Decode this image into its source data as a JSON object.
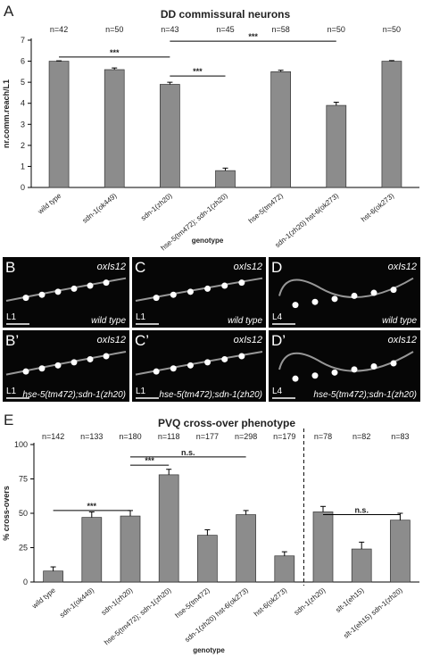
{
  "chart_data": [
    {
      "type": "bar",
      "panel_label": "A",
      "title": "DD commissural neurons",
      "ylabel": "nr.comm.reach/L1",
      "xlabel": "genotype",
      "categories": [
        "wild type",
        "sdn-1(ok449)",
        "sdn-1(zh20)",
        "hse-5(tm472); sdn-1(zh20)",
        "hse-5(tm472)",
        "sdn-1(zh20) hst-6(ok273)",
        "hst-6(ok273)"
      ],
      "values": [
        6.0,
        5.6,
        4.9,
        0.8,
        5.5,
        3.9,
        6.0
      ],
      "errors": [
        0.02,
        0.08,
        0.1,
        0.12,
        0.07,
        0.15,
        0.03
      ],
      "n_labels": [
        "n=42",
        "n=50",
        "n=43",
        "n=45",
        "n=58",
        "n=50",
        "n=50"
      ],
      "color": "#8c8c8c",
      "ylim": [
        0,
        7
      ],
      "yticks": [
        0,
        1,
        2,
        3,
        4,
        5,
        6,
        7
      ],
      "annotations": [
        {
          "from": "wild type",
          "to": "sdn-1(zh20)",
          "y": 6.2,
          "label": "***"
        },
        {
          "from": "sdn-1(zh20)",
          "to": "hse-5(tm472); sdn-1(zh20)",
          "y": 5.3,
          "label": "***"
        },
        {
          "from": "sdn-1(zh20)",
          "to": "sdn-1(zh20) hst-6(ok273)",
          "y": 6.95,
          "label": "***"
        }
      ]
    },
    {
      "type": "bar",
      "panel_label": "E",
      "title": "PVQ cross-over phenotype",
      "ylabel": "% cross-overs",
      "xlabel": "genotype",
      "categories": [
        "wild type",
        "sdn-1(ok449)",
        "sdn-1(zh20)",
        "hse-5(tm472); sdn-1(zh20)",
        "hse-5(tm472)",
        "sdn-1(zh20) hst-6(ok273)",
        "hst-6(ok273)",
        "sdn-1(zh20)",
        "slt-1(eh15)",
        "slt-1(eh15) sdn-1(zh20)"
      ],
      "values": [
        8,
        47,
        48,
        78,
        34,
        49,
        19,
        51,
        24,
        45
      ],
      "errors": [
        3,
        4,
        4,
        4,
        4,
        3,
        3,
        4,
        5,
        5
      ],
      "n_labels": [
        "n=142",
        "n=133",
        "n=180",
        "n=118",
        "n=177",
        "n=298",
        "n=179",
        "n=78",
        "n=82",
        "n=83"
      ],
      "color": "#8c8c8c",
      "ylim": [
        0,
        100
      ],
      "yticks": [
        0,
        25,
        50,
        75,
        100
      ],
      "annotations": [
        {
          "from": "wild type",
          "to": "sdn-1(zh20)",
          "y": 52,
          "label": "***"
        },
        {
          "from": "sdn-1(zh20)",
          "to": "hse-5(tm472); sdn-1(zh20)",
          "y": 85,
          "label": "***"
        },
        {
          "from": "sdn-1(zh20)",
          "to": "sdn-1(zh20) hst-6(ok273)",
          "y": 91,
          "label": "n.s."
        },
        {
          "from": "sdn-1(zh20)",
          "to": "slt-1(eh15) sdn-1(zh20)",
          "y": 49,
          "label": "n.s.",
          "group": 2
        }
      ]
    }
  ],
  "panels": [
    {
      "letter": "B",
      "marker": "oxIs12",
      "genotype": "wild type",
      "stage": "L1"
    },
    {
      "letter": "C",
      "marker": "oxIs12",
      "genotype": "wild type",
      "stage": "L1"
    },
    {
      "letter": "D",
      "marker": "oxIs12",
      "genotype": "wild type",
      "stage": "L4"
    },
    {
      "letter": "B’",
      "marker": "oxIs12",
      "genotype": "hse-5(tm472);sdn-1(zh20)",
      "stage": "L1"
    },
    {
      "letter": "C’",
      "marker": "oxIs12",
      "genotype": "hse-5(tm472);sdn-1(zh20)",
      "stage": "L1"
    },
    {
      "letter": "D’",
      "marker": "oxIs12",
      "genotype": "hse-5(tm472);sdn-1(zh20)",
      "stage": "L4"
    }
  ]
}
